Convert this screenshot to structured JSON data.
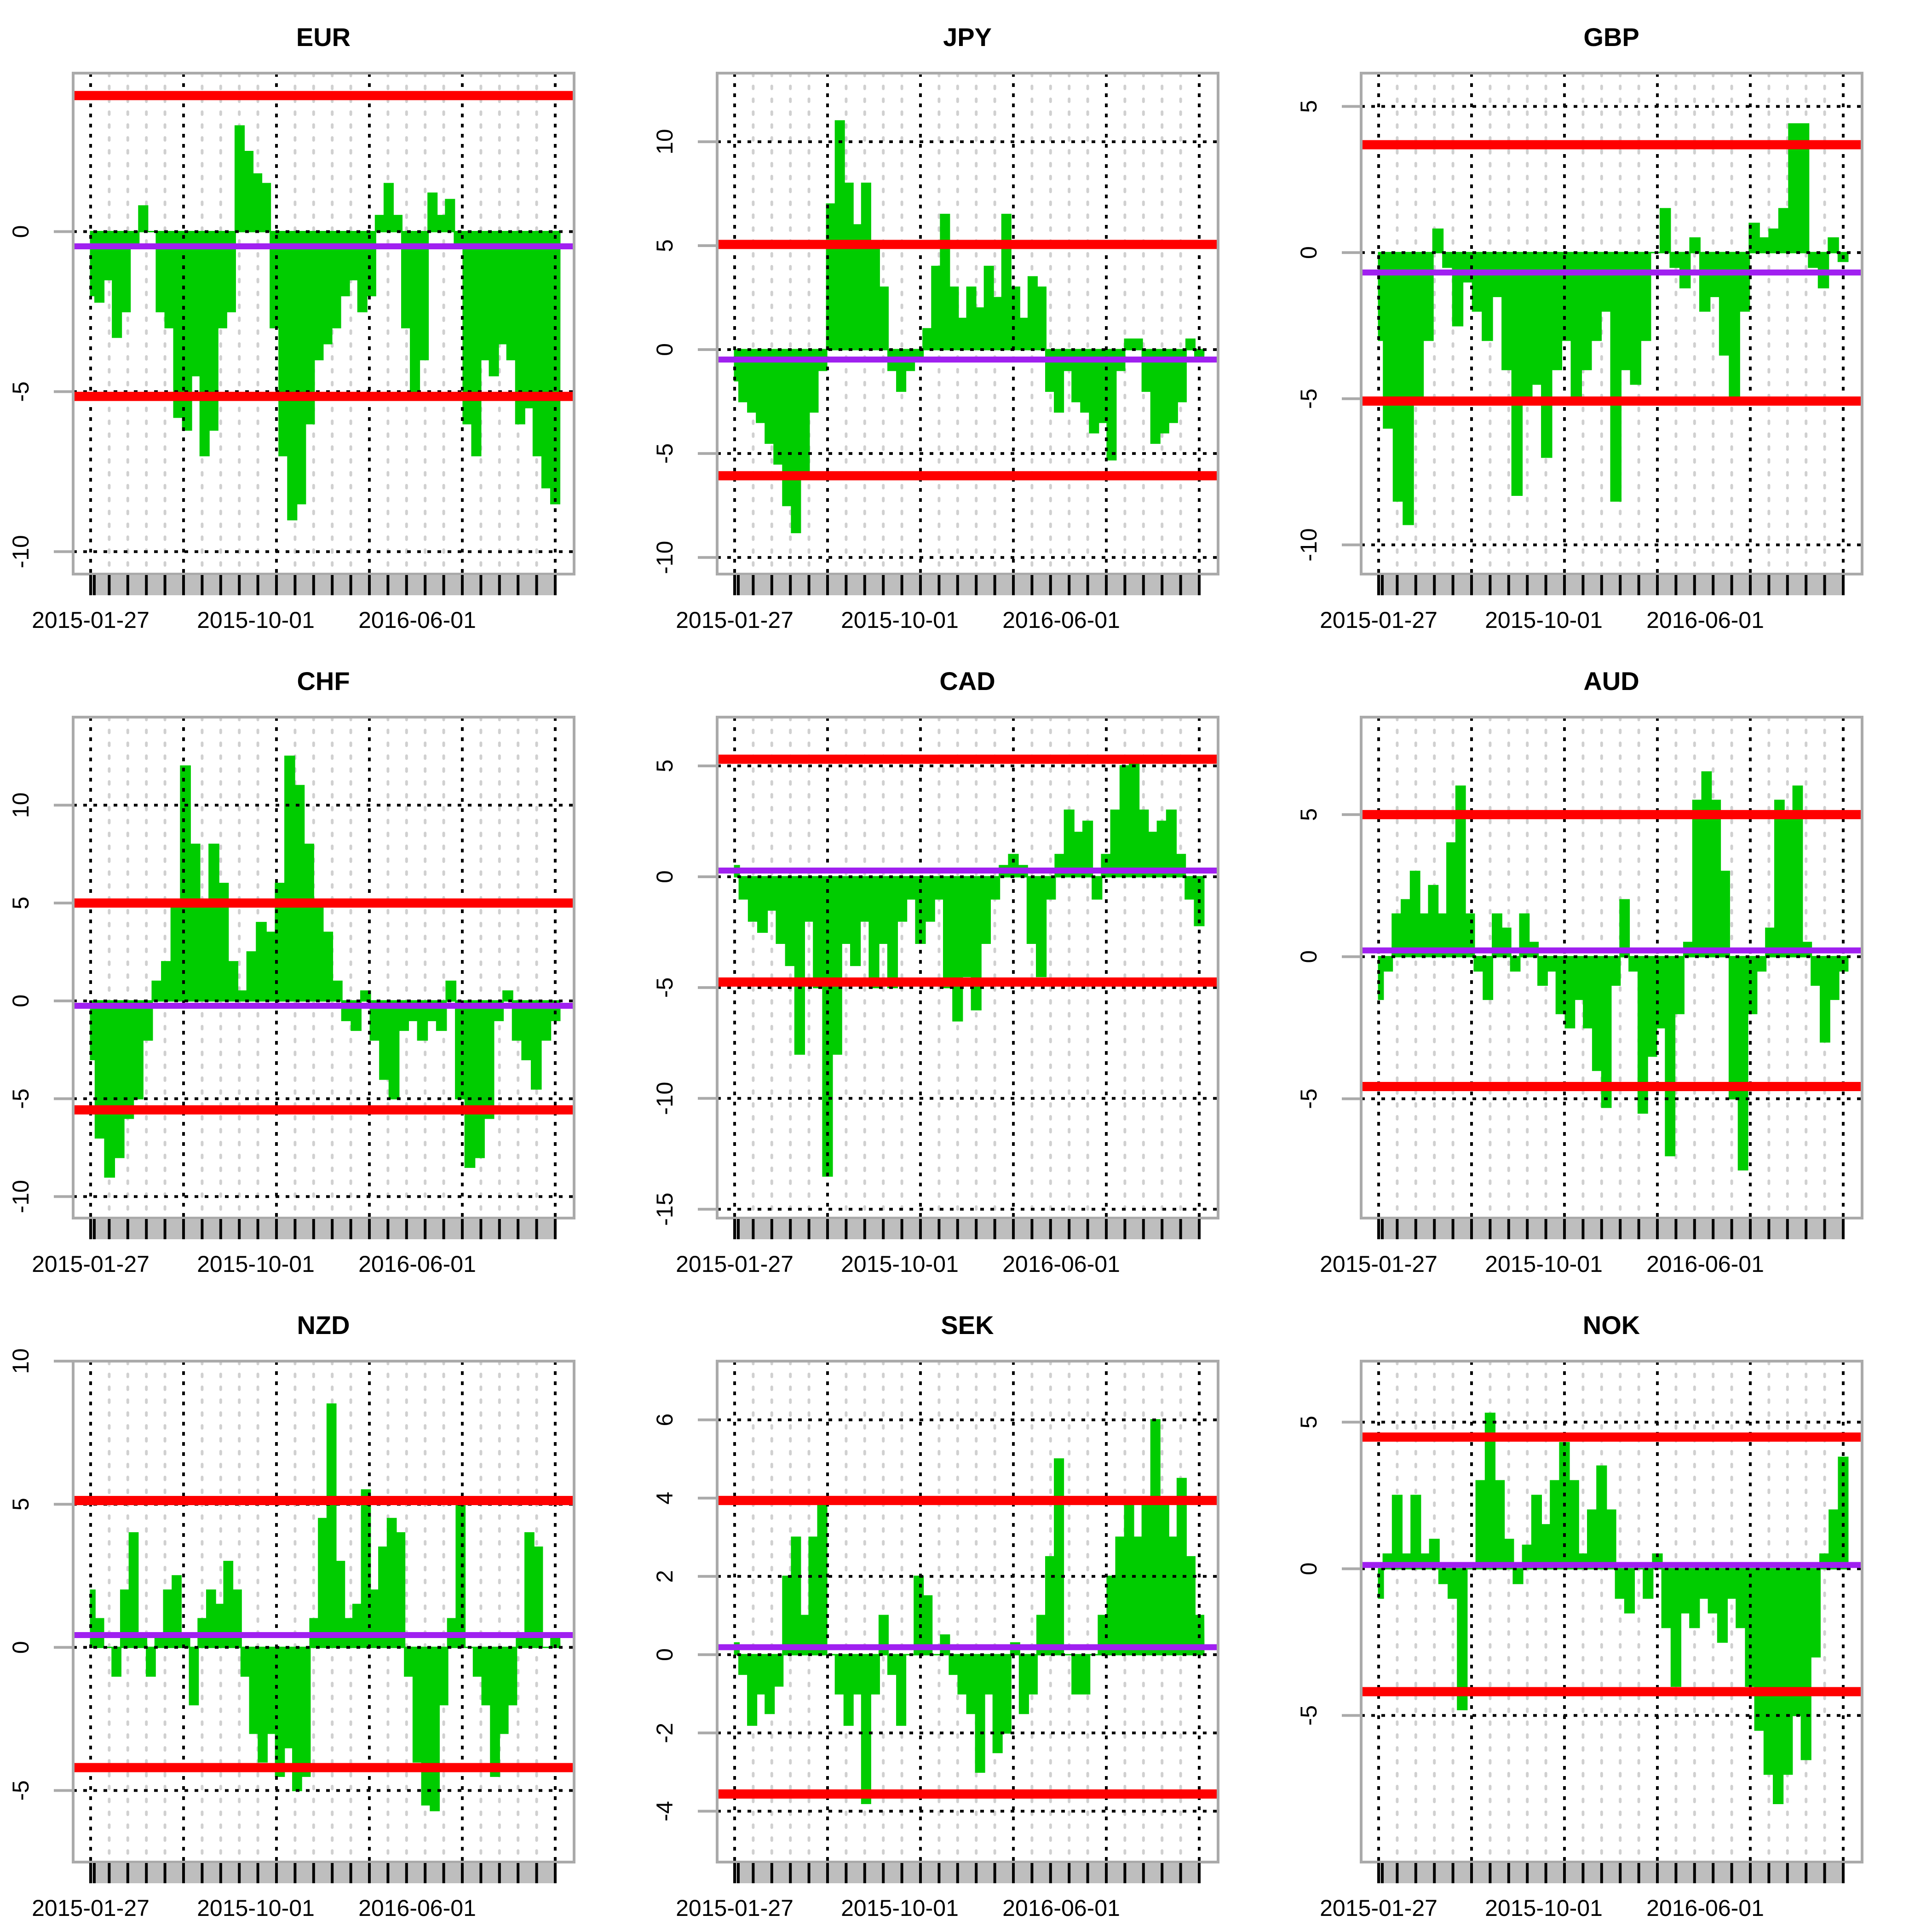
{
  "chart_data": [
    {
      "type": "area",
      "title": "EUR",
      "ylim": [
        -10.7,
        4.95
      ],
      "yticks": [
        0,
        -5,
        -10
      ],
      "upper": 4.25,
      "lower": -5.15,
      "mean": -0.46,
      "xtick_labels": [
        "2015-01-27",
        "2015-10-01",
        "2016-06-01"
      ],
      "values": [
        -2,
        -2.2,
        -1.5,
        -3.3,
        -2.5,
        -0.5,
        0.8,
        0,
        -2.5,
        -3,
        -5.8,
        -6.2,
        -4.5,
        -7,
        -6.2,
        -3,
        -2.5,
        3.3,
        2.5,
        1.8,
        1.5,
        -3,
        -7,
        -9,
        -8.5,
        -6,
        -4,
        -3.5,
        -3,
        -2,
        -1.5,
        -2.5,
        -2,
        0.5,
        1.5,
        0.5,
        -3,
        -5,
        -4,
        1.2,
        0.5,
        1,
        -0.5,
        -6,
        -7,
        -4,
        -4.5,
        -3.5,
        -4,
        -6,
        -5.5,
        -7,
        -8,
        -8.5
      ]
    },
    {
      "type": "area",
      "title": "JPY",
      "ylim": [
        -10.8,
        13.3
      ],
      "yticks": [
        10,
        5,
        0,
        -5,
        -10
      ],
      "upper": 5.06,
      "lower": -6.07,
      "mean": -0.48,
      "xtick_labels": [
        "2015-01-27",
        "2015-10-01",
        "2016-06-01"
      ],
      "values": [
        -1.5,
        -2.5,
        -3,
        -3.5,
        -4.5,
        -5.5,
        -7.5,
        -8.8,
        -6,
        -3,
        -1,
        7,
        11,
        8,
        6,
        8,
        5,
        3,
        -1,
        -2,
        -1,
        -0.5,
        1,
        4,
        6.5,
        3,
        1.5,
        3,
        2,
        4,
        2.5,
        6.5,
        3,
        1.5,
        3.5,
        3,
        -2,
        -3,
        -1,
        -2.5,
        -3,
        -4,
        -3.5,
        -5.3,
        -1,
        0.5,
        0.5,
        -2,
        -4.5,
        -4,
        -3.5,
        -2.5,
        0.5,
        -0.5
      ]
    },
    {
      "type": "area",
      "title": "GBP",
      "ylim": [
        -11.0,
        6.14
      ],
      "yticks": [
        5,
        0,
        -5,
        -10
      ],
      "upper": 3.69,
      "lower": -5.08,
      "mean": -0.68,
      "xtick_labels": [
        "2015-01-27",
        "2015-10-01",
        "2016-06-01"
      ],
      "values": [
        -3,
        -6,
        -8.5,
        -9.3,
        -5,
        -3,
        0.8,
        -0.5,
        -2.5,
        -1,
        -2,
        -3,
        -1.5,
        -4,
        -8.3,
        -5,
        -4.5,
        -7,
        -4,
        -3,
        -5,
        -4,
        -3,
        -2,
        -8.5,
        -4,
        -4.5,
        -3,
        0,
        1.5,
        -0.5,
        -1.2,
        0.5,
        -2,
        -1.5,
        -3.5,
        -5,
        -2,
        1,
        0.5,
        0.8,
        1.5,
        4.4,
        4.4,
        -0.5,
        -1.2,
        0.5,
        -0.3
      ]
    },
    {
      "type": "area",
      "title": "CHF",
      "ylim": [
        -11.1,
        14.5
      ],
      "yticks": [
        10,
        5,
        0,
        -5,
        -10
      ],
      "upper": 5.0,
      "lower": -5.57,
      "mean": -0.25,
      "xtick_labels": [
        "2015-01-27",
        "2015-10-01",
        "2016-06-01"
      ],
      "values": [
        -3,
        -7,
        -9,
        -8,
        -6,
        -5,
        -2,
        1,
        2,
        5,
        12,
        8,
        5,
        8,
        6,
        2,
        0.5,
        2.5,
        4,
        3.5,
        6,
        12.5,
        11,
        8,
        5,
        3.5,
        1,
        -1,
        -1.5,
        0.5,
        -2,
        -4,
        -5,
        -1.5,
        -1,
        -2,
        -1,
        -1.5,
        1,
        -5,
        -8.5,
        -8,
        -6,
        -1,
        0.5,
        -2,
        -3,
        -4.5,
        -2,
        -1
      ]
    },
    {
      "type": "area",
      "title": "CAD",
      "ylim": [
        -15.4,
        7.2
      ],
      "yticks": [
        5,
        0,
        -5,
        -10,
        -15
      ],
      "upper": 5.3,
      "lower": -4.75,
      "mean": 0.28,
      "xtick_labels": [
        "2015-01-27",
        "2015-10-01",
        "2016-06-01"
      ],
      "values": [
        0.5,
        -1,
        -2,
        -2.5,
        -1.5,
        -3,
        -4,
        -8,
        -2,
        -5,
        -13.5,
        -8,
        -3,
        -4,
        -2,
        -5,
        -3,
        -5,
        -2,
        -1,
        -3,
        -2,
        -1,
        -5,
        -6.5,
        -4.5,
        -6,
        -3,
        -1,
        0.5,
        1,
        0.5,
        -3,
        -4.5,
        -1,
        1,
        3,
        2,
        2.5,
        -1,
        1,
        3,
        5,
        5.3,
        3,
        2,
        2.5,
        3,
        1,
        -1,
        -2.2
      ]
    },
    {
      "type": "area",
      "title": "AUD",
      "ylim": [
        -9.2,
        8.43
      ],
      "yticks": [
        5,
        0,
        -5
      ],
      "upper": 5.0,
      "lower": -4.57,
      "mean": 0.22,
      "xtick_labels": [
        "2015-01-27",
        "2015-10-01",
        "2016-06-01"
      ],
      "values": [
        -1.5,
        -0.5,
        1.5,
        2,
        3,
        1.5,
        2.5,
        1.5,
        4,
        6,
        1.5,
        -0.5,
        -1.5,
        1.5,
        1,
        -0.5,
        1.5,
        0.5,
        -1,
        -0.5,
        -2,
        -2.5,
        -1.5,
        -2.5,
        -4,
        -5.3,
        -1,
        2,
        -0.5,
        -5.5,
        -3.5,
        -2.5,
        -7,
        -2,
        0.5,
        5.5,
        6.5,
        5.5,
        3,
        -5,
        -7.5,
        -2,
        -0.5,
        1,
        5.5,
        5,
        6,
        0.5,
        -1,
        -3,
        -1.5,
        -0.5
      ]
    },
    {
      "type": "area",
      "title": "NZD",
      "ylim": [
        -7.5,
        10.0
      ],
      "yticks": [
        10,
        5,
        0,
        -5
      ],
      "upper": 5.13,
      "lower": -4.2,
      "mean": 0.43,
      "xtick_labels": [
        "2015-01-27",
        "2015-10-01",
        "2016-06-01"
      ],
      "values": [
        2,
        1,
        0,
        -1,
        2,
        4,
        0.5,
        -1,
        0.5,
        2,
        2.5,
        0.5,
        -2,
        1,
        2,
        1.5,
        3,
        2,
        -1,
        -3,
        -4,
        -3,
        -4.5,
        -3.5,
        -5,
        -4.5,
        1,
        4.5,
        8.5,
        3,
        1,
        1.5,
        5.5,
        2,
        3.5,
        4.5,
        4,
        -1,
        -4,
        -5.5,
        -5.7,
        -2,
        1,
        5,
        0,
        -1,
        -2,
        -4.5,
        -3,
        -2,
        0.5,
        4,
        3.5,
        0,
        0.5
      ]
    },
    {
      "type": "area",
      "title": "SEK",
      "ylim": [
        -5.3,
        7.5
      ],
      "yticks": [
        6,
        4,
        2,
        0,
        -2,
        -4
      ],
      "upper": 3.94,
      "lower": -3.56,
      "mean": 0.19,
      "xtick_labels": [
        "2015-01-27",
        "2015-10-01",
        "2016-06-01"
      ],
      "values": [
        0.3,
        -0.5,
        -1.8,
        -1,
        -1.5,
        -0.8,
        2,
        3,
        1,
        3,
        4,
        0,
        -1,
        -1.8,
        -1,
        -3.8,
        -1,
        1,
        -0.5,
        -1.8,
        0,
        2,
        1.5,
        0,
        0.5,
        -0.5,
        -1,
        -1.5,
        -3,
        -1,
        -2.5,
        -2,
        0.3,
        -1.5,
        -1,
        1,
        2.5,
        5,
        0,
        -1,
        -1,
        0,
        1,
        2,
        3,
        4,
        3,
        4,
        6,
        4,
        3,
        4.5,
        2.5,
        1
      ]
    },
    {
      "type": "area",
      "title": "NOK",
      "ylim": [
        -10.0,
        7.08
      ],
      "yticks": [
        5,
        0,
        -5
      ],
      "upper": 4.49,
      "lower": -4.19,
      "mean": 0.13,
      "xtick_labels": [
        "2015-01-27",
        "2015-10-01",
        "2016-06-01"
      ],
      "values": [
        -1,
        0.5,
        2.5,
        0.5,
        2.5,
        0.5,
        1,
        -0.5,
        -1,
        -4.8,
        0,
        3,
        5.3,
        3,
        1,
        -0.5,
        0.8,
        2.5,
        1.5,
        3,
        4.3,
        3,
        0.5,
        2,
        3.5,
        2,
        -1,
        -1.5,
        0,
        -1,
        0.5,
        -2,
        -4,
        -1.5,
        -2,
        -1,
        -1.5,
        -2.5,
        -1,
        -2,
        -4,
        -5.5,
        -7,
        -8,
        -7,
        -5,
        -6.5,
        -3,
        0.5,
        2,
        3.8
      ]
    }
  ],
  "colors": {
    "area": "#00cc00",
    "threshold": "#ff0000",
    "mean": "#a020f0",
    "frame": "#aaaaaa",
    "rug": "#bebebe"
  }
}
